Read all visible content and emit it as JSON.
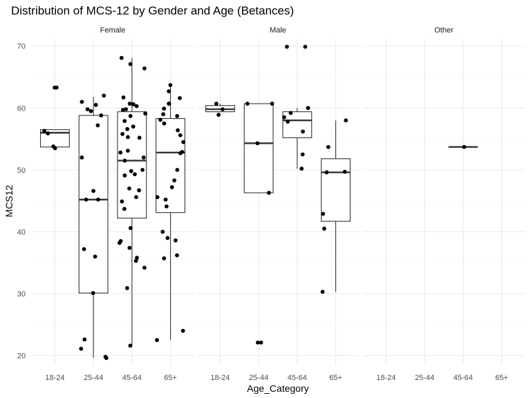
{
  "chart_data": {
    "type": "boxplot",
    "title": "Distribution of MCS-12 by Gender and Age (Betances)",
    "xlabel": "Age_Category",
    "ylabel": "MCS12",
    "categories": [
      "18-24",
      "25-44",
      "45-64",
      "65+"
    ],
    "ylim": [
      18.5,
      71.2
    ],
    "yticks": [
      20,
      30,
      40,
      50,
      60,
      70
    ],
    "grid": true,
    "facets": [
      {
        "name": "Female",
        "boxes": [
          {
            "category": "18-24",
            "min": 53.6,
            "q1": 53.7,
            "median": 56.0,
            "q3": 56.5,
            "max": 56.5
          },
          {
            "category": "25-44",
            "min": 19.6,
            "q1": 30.1,
            "median": 45.2,
            "q3": 58.8,
            "max": 61.8
          },
          {
            "category": "45-64",
            "min": 21.5,
            "q1": 42.2,
            "median": 51.5,
            "q3": 59.4,
            "max": 68.1
          },
          {
            "category": "65+",
            "min": 22.5,
            "q1": 43.1,
            "median": 52.8,
            "q3": 58.3,
            "max": 63.6
          }
        ],
        "points": [
          [
            "18-24",
            63.3
          ],
          [
            "18-24",
            63.3
          ],
          [
            "18-24",
            56.3
          ],
          [
            "18-24",
            55.9
          ],
          [
            "18-24",
            53.8
          ],
          [
            "18-24",
            53.5
          ],
          [
            "25-44",
            61.0
          ],
          [
            "25-44",
            62.0
          ],
          [
            "25-44",
            60.5
          ],
          [
            "25-44",
            59.5
          ],
          [
            "25-44",
            59.8
          ],
          [
            "25-44",
            58.8
          ],
          [
            "25-44",
            57.2
          ],
          [
            "25-44",
            52.0
          ],
          [
            "25-44",
            46.6
          ],
          [
            "25-44",
            45.2
          ],
          [
            "25-44",
            45.2
          ],
          [
            "25-44",
            37.2
          ],
          [
            "25-44",
            36.0
          ],
          [
            "25-44",
            30.1
          ],
          [
            "25-44",
            22.6
          ],
          [
            "25-44",
            21.1
          ],
          [
            "25-44",
            19.8
          ],
          [
            "25-44",
            19.6
          ],
          [
            "45-64",
            68.1
          ],
          [
            "45-64",
            67.1
          ],
          [
            "45-64",
            66.4
          ],
          [
            "45-64",
            61.7
          ],
          [
            "45-64",
            60.7
          ],
          [
            "45-64",
            60.6
          ],
          [
            "45-64",
            60.3
          ],
          [
            "45-64",
            59.8
          ],
          [
            "45-64",
            59.7
          ],
          [
            "45-64",
            59.1
          ],
          [
            "45-64",
            58.7
          ],
          [
            "45-64",
            57.9
          ],
          [
            "45-64",
            57.0
          ],
          [
            "45-64",
            56.6
          ],
          [
            "45-64",
            55.8
          ],
          [
            "45-64",
            55.2
          ],
          [
            "45-64",
            55.3
          ],
          [
            "45-64",
            53.1
          ],
          [
            "45-64",
            52.8
          ],
          [
            "45-64",
            52.0
          ],
          [
            "45-64",
            51.5
          ],
          [
            "45-64",
            50.0
          ],
          [
            "45-64",
            49.8
          ],
          [
            "45-64",
            49.1
          ],
          [
            "45-64",
            49.3
          ],
          [
            "45-64",
            47.0
          ],
          [
            "45-64",
            46.7
          ],
          [
            "45-64",
            45.6
          ],
          [
            "45-64",
            44.9
          ],
          [
            "45-64",
            43.7
          ],
          [
            "45-64",
            40.6
          ],
          [
            "45-64",
            38.5
          ],
          [
            "45-64",
            38.2
          ],
          [
            "45-64",
            37.4
          ],
          [
            "45-64",
            35.8
          ],
          [
            "45-64",
            35.3
          ],
          [
            "45-64",
            34.2
          ],
          [
            "45-64",
            30.9
          ],
          [
            "45-64",
            21.6
          ],
          [
            "65+",
            63.7
          ],
          [
            "65+",
            62.7
          ],
          [
            "65+",
            61.6
          ],
          [
            "65+",
            60.7
          ],
          [
            "65+",
            60.7
          ],
          [
            "65+",
            59.9
          ],
          [
            "65+",
            59.0
          ],
          [
            "65+",
            58.7
          ],
          [
            "65+",
            58.1
          ],
          [
            "65+",
            57.5
          ],
          [
            "65+",
            56.4
          ],
          [
            "65+",
            55.6
          ],
          [
            "65+",
            54.5
          ],
          [
            "65+",
            52.9
          ],
          [
            "65+",
            52.7
          ],
          [
            "65+",
            50.0
          ],
          [
            "65+",
            48.3
          ],
          [
            "65+",
            47.2
          ],
          [
            "65+",
            45.6
          ],
          [
            "65+",
            45.2
          ],
          [
            "65+",
            44.1
          ],
          [
            "65+",
            40.0
          ],
          [
            "65+",
            39.0
          ],
          [
            "65+",
            38.6
          ],
          [
            "65+",
            36.2
          ],
          [
            "65+",
            35.7
          ],
          [
            "65+",
            24.0
          ],
          [
            "65+",
            22.5
          ]
        ]
      },
      {
        "name": "Male",
        "boxes": [
          {
            "category": "18-24",
            "min": 59.4,
            "q1": 59.4,
            "median": 59.8,
            "q3": 60.4,
            "max": 60.7
          },
          {
            "category": "25-44",
            "min": 46.3,
            "q1": 46.3,
            "median": 54.3,
            "q3": 60.7,
            "max": 60.7
          },
          {
            "category": "45-64",
            "min": 50.2,
            "q1": 55.2,
            "median": 58.0,
            "q3": 59.4,
            "max": 60.0
          },
          {
            "category": "65+",
            "min": 30.3,
            "q1": 41.7,
            "median": 49.6,
            "q3": 51.8,
            "max": 58.0
          }
        ],
        "points": [
          [
            "18-24",
            60.7
          ],
          [
            "18-24",
            59.8
          ],
          [
            "18-24",
            58.9
          ],
          [
            "25-44",
            60.7
          ],
          [
            "25-44",
            60.7
          ],
          [
            "25-44",
            54.3
          ],
          [
            "25-44",
            46.3
          ],
          [
            "25-44",
            22.1
          ],
          [
            "25-44",
            22.1
          ],
          [
            "45-64",
            69.9
          ],
          [
            "45-64",
            69.9
          ],
          [
            "45-64",
            60.0
          ],
          [
            "45-64",
            59.2
          ],
          [
            "45-64",
            58.5
          ],
          [
            "45-64",
            57.8
          ],
          [
            "45-64",
            56.2
          ],
          [
            "45-64",
            52.5
          ],
          [
            "45-64",
            50.2
          ],
          [
            "65+",
            58.0
          ],
          [
            "65+",
            53.7
          ],
          [
            "65+",
            49.7
          ],
          [
            "65+",
            49.6
          ],
          [
            "65+",
            42.9
          ],
          [
            "65+",
            40.5
          ],
          [
            "65+",
            30.3
          ]
        ]
      },
      {
        "name": "Other",
        "boxes": [
          {
            "category": "45-64",
            "min": 53.7,
            "q1": 53.7,
            "median": 53.7,
            "q3": 53.7,
            "max": 53.7
          }
        ],
        "points": [
          [
            "45-64",
            53.7
          ]
        ]
      }
    ]
  }
}
